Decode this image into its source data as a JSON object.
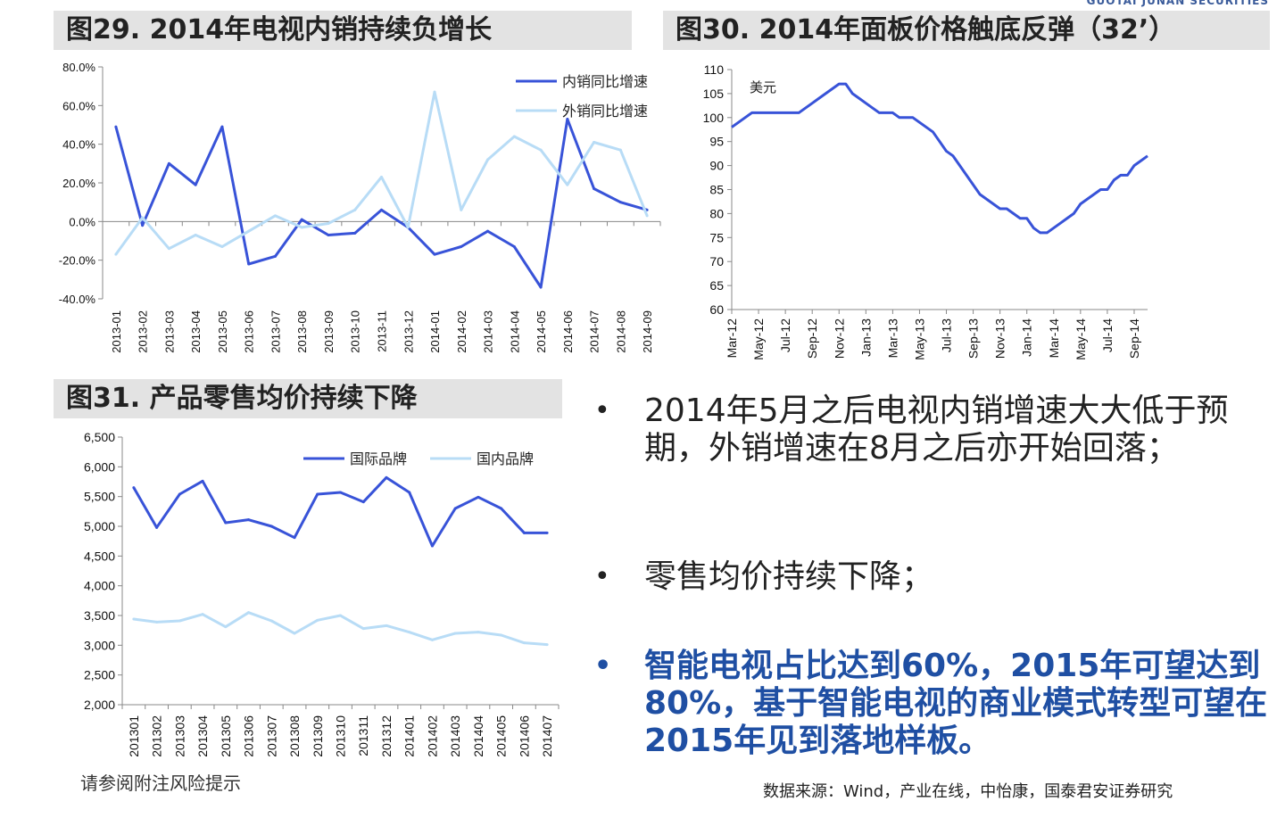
{
  "header": {
    "logo_text": "GUOTAI JUNAN SECURITIES"
  },
  "titles": {
    "fig29": "图29. 2014年电视内销持续负增长",
    "fig30": "图30. 2014年面板价格触底反弹（32’）",
    "fig31": "图31. 产品零售均价持续下降"
  },
  "bullets": {
    "b1": "2014年5月之后电视内销增速大大低于预期，外销增速在8月之后亦开始回落；",
    "b2": "零售均价持续下降；",
    "b3": "智能电视占比达到60%，2015年可望达到80%，基于智能电视的商业模式转型可望在2015年见到落地样板。",
    "dot": "•"
  },
  "footer": {
    "left": "请参阅附注风险提示",
    "right": "数据来源：Wind，产业在线，中怡康，国泰君安证券研究"
  },
  "colors": {
    "dark_blue": "#3853d8",
    "light_blue": "#b8dcf6",
    "highlight": "#1f4fa3"
  },
  "chart_data": [
    {
      "type": "line",
      "title": "图29. 2014年电视内销持续负增长",
      "categories": [
        "2013-01",
        "2013-02",
        "2013-03",
        "2013-04",
        "2013-05",
        "2013-06",
        "2013-07",
        "2013-08",
        "2013-09",
        "2013-10",
        "2013-11",
        "2013-12",
        "2014-01",
        "2014-02",
        "2014-03",
        "2014-04",
        "2014-05",
        "2014-06",
        "2014-07",
        "2014-08",
        "2014-09"
      ],
      "yticks": [
        "80.0%",
        "60.0%",
        "40.0%",
        "20.0%",
        "0.0%",
        "-20.0%",
        "-40.0%"
      ],
      "ylim": [
        -40,
        80
      ],
      "legend_position": "top-right",
      "series": [
        {
          "name": "内销同比增速",
          "color": "#3853d8",
          "values": [
            49,
            -2,
            30,
            19,
            49,
            -22,
            -18,
            1,
            -7,
            -6,
            6,
            -3,
            -17,
            -13,
            -5,
            -13,
            -34,
            53,
            17,
            10,
            6
          ]
        },
        {
          "name": "外销同比增速",
          "color": "#b8dcf6",
          "values": [
            -17,
            2,
            -14,
            -7,
            -13,
            -5,
            3,
            -3,
            -1,
            6,
            23,
            -3,
            67,
            6,
            32,
            44,
            37,
            19,
            41,
            37,
            3
          ]
        }
      ]
    },
    {
      "type": "line",
      "title": "图30. 2014年面板价格触底反弹（32’）",
      "unit_label": "美元",
      "xticks": [
        "Mar-12",
        "May-12",
        "Jul-12",
        "Sep-12",
        "Nov-12",
        "Jan-13",
        "Mar-13",
        "May-13",
        "Jul-13",
        "Sep-13",
        "Nov-13",
        "Jan-14",
        "Mar-14",
        "May-14",
        "Jul-14",
        "Sep-14"
      ],
      "yticks": [
        110,
        105,
        100,
        95,
        90,
        85,
        80,
        75,
        70,
        65,
        60
      ],
      "ylim": [
        60,
        110
      ],
      "series": [
        {
          "name": "",
          "color": "#3853d8",
          "values": [
            98,
            99,
            100,
            101,
            101,
            101,
            101,
            101,
            101,
            101,
            101,
            102,
            103,
            104,
            105,
            106,
            107,
            107,
            105,
            104,
            103,
            102,
            101,
            101,
            101,
            100,
            100,
            100,
            99,
            98,
            97,
            95,
            93,
            92,
            90,
            88,
            86,
            84,
            83,
            82,
            81,
            81,
            80,
            79,
            79,
            77,
            76,
            76,
            77,
            78,
            79,
            80,
            82,
            83,
            84,
            85,
            85,
            87,
            88,
            88,
            90,
            91,
            92
          ]
        }
      ]
    },
    {
      "type": "line",
      "title": "图31. 产品零售均价持续下降",
      "categories": [
        "201301",
        "201302",
        "201303",
        "201304",
        "201305",
        "201306",
        "201307",
        "201308",
        "201309",
        "201310",
        "201311",
        "201312",
        "201401",
        "201402",
        "201403",
        "201404",
        "201405",
        "201406",
        "201407"
      ],
      "yticks": [
        "6,500",
        "6,000",
        "5,500",
        "5,000",
        "4,500",
        "4,000",
        "3,500",
        "3,000",
        "2,500",
        "2,000"
      ],
      "ylim": [
        2000,
        6500
      ],
      "legend_position": "top-right",
      "series": [
        {
          "name": "国际品牌",
          "color": "#3853d8",
          "values": [
            5650,
            4980,
            5540,
            5760,
            5060,
            5110,
            5000,
            4810,
            5540,
            5570,
            5410,
            5820,
            5570,
            4670,
            5300,
            5490,
            5300,
            4890,
            4890
          ]
        },
        {
          "name": "国内品牌",
          "color": "#b8dcf6",
          "values": [
            3440,
            3390,
            3410,
            3520,
            3310,
            3550,
            3410,
            3200,
            3420,
            3500,
            3280,
            3330,
            3220,
            3090,
            3200,
            3220,
            3170,
            3040,
            3010
          ]
        }
      ]
    }
  ]
}
